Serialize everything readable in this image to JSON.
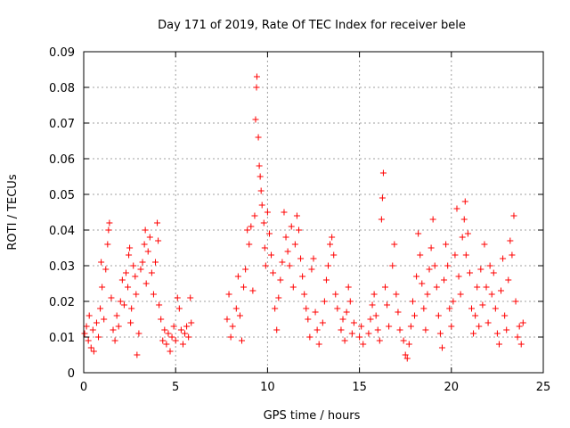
{
  "chart_data": {
    "type": "scatter",
    "title": "Day 171 of 2019, Rate Of TEC Index for receiver bele",
    "xlabel": "GPS time / hours",
    "ylabel": "ROTI / TECUs",
    "xlim": [
      0,
      25
    ],
    "ylim": [
      0,
      0.09
    ],
    "x_ticks": [
      0,
      5,
      10,
      15,
      20,
      25
    ],
    "y_ticks": [
      0,
      0.01,
      0.02,
      0.03,
      0.04,
      0.05,
      0.06,
      0.07,
      0.08,
      0.09
    ],
    "x_tick_labels": [
      "0",
      "5",
      "10",
      "15",
      "20",
      "25"
    ],
    "y_tick_labels": [
      "0",
      "0.01",
      "0.02",
      "0.03",
      "0.04",
      "0.05",
      "0.06",
      "0.07",
      "0.08",
      "0.09"
    ],
    "grid": true,
    "marker": "+",
    "marker_color": "#ff0000",
    "series": [
      {
        "points": [
          [
            0.05,
            0.011
          ],
          [
            0.15,
            0.013
          ],
          [
            0.25,
            0.009
          ],
          [
            0.3,
            0.016
          ],
          [
            0.4,
            0.007
          ],
          [
            0.5,
            0.012
          ],
          [
            0.55,
            0.006
          ],
          [
            0.7,
            0.014
          ],
          [
            0.8,
            0.01
          ],
          [
            0.9,
            0.018
          ],
          [
            0.95,
            0.031
          ],
          [
            1.0,
            0.024
          ],
          [
            1.1,
            0.015
          ],
          [
            1.2,
            0.029
          ],
          [
            1.3,
            0.036
          ],
          [
            1.35,
            0.04
          ],
          [
            1.4,
            0.042
          ],
          [
            1.5,
            0.021
          ],
          [
            1.6,
            0.012
          ],
          [
            1.7,
            0.009
          ],
          [
            1.8,
            0.016
          ],
          [
            1.9,
            0.013
          ],
          [
            2.0,
            0.02
          ],
          [
            2.1,
            0.026
          ],
          [
            2.2,
            0.019
          ],
          [
            2.3,
            0.028
          ],
          [
            2.4,
            0.024
          ],
          [
            2.45,
            0.033
          ],
          [
            2.5,
            0.035
          ],
          [
            2.55,
            0.014
          ],
          [
            2.6,
            0.018
          ],
          [
            2.7,
            0.03
          ],
          [
            2.8,
            0.027
          ],
          [
            2.85,
            0.022
          ],
          [
            2.9,
            0.005
          ],
          [
            3.0,
            0.011
          ],
          [
            3.1,
            0.029
          ],
          [
            3.2,
            0.031
          ],
          [
            3.3,
            0.036
          ],
          [
            3.35,
            0.04
          ],
          [
            3.4,
            0.025
          ],
          [
            3.5,
            0.034
          ],
          [
            3.6,
            0.038
          ],
          [
            3.7,
            0.028
          ],
          [
            3.8,
            0.022
          ],
          [
            3.9,
            0.031
          ],
          [
            4.0,
            0.042
          ],
          [
            4.05,
            0.037
          ],
          [
            4.1,
            0.019
          ],
          [
            4.2,
            0.015
          ],
          [
            4.3,
            0.009
          ],
          [
            4.4,
            0.012
          ],
          [
            4.5,
            0.008
          ],
          [
            4.6,
            0.011
          ],
          [
            4.7,
            0.006
          ],
          [
            4.8,
            0.01
          ],
          [
            4.9,
            0.013
          ],
          [
            5.0,
            0.009
          ],
          [
            5.1,
            0.021
          ],
          [
            5.2,
            0.018
          ],
          [
            5.3,
            0.012
          ],
          [
            5.4,
            0.008
          ],
          [
            5.5,
            0.011
          ],
          [
            5.6,
            0.013
          ],
          [
            5.7,
            0.01
          ],
          [
            5.8,
            0.021
          ],
          [
            5.85,
            0.014
          ],
          [
            7.8,
            0.015
          ],
          [
            7.9,
            0.022
          ],
          [
            8.0,
            0.01
          ],
          [
            8.1,
            0.013
          ],
          [
            8.3,
            0.018
          ],
          [
            8.4,
            0.027
          ],
          [
            8.5,
            0.016
          ],
          [
            8.6,
            0.009
          ],
          [
            8.7,
            0.024
          ],
          [
            8.8,
            0.029
          ],
          [
            8.9,
            0.04
          ],
          [
            9.0,
            0.036
          ],
          [
            9.1,
            0.041
          ],
          [
            9.2,
            0.023
          ],
          [
            9.3,
            0.044
          ],
          [
            9.35,
            0.071
          ],
          [
            9.4,
            0.08
          ],
          [
            9.42,
            0.083
          ],
          [
            9.5,
            0.066
          ],
          [
            9.55,
            0.058
          ],
          [
            9.6,
            0.055
          ],
          [
            9.65,
            0.051
          ],
          [
            9.7,
            0.047
          ],
          [
            9.8,
            0.042
          ],
          [
            9.85,
            0.035
          ],
          [
            9.9,
            0.03
          ],
          [
            10.0,
            0.045
          ],
          [
            10.1,
            0.039
          ],
          [
            10.2,
            0.033
          ],
          [
            10.3,
            0.028
          ],
          [
            10.4,
            0.018
          ],
          [
            10.5,
            0.012
          ],
          [
            10.6,
            0.021
          ],
          [
            10.7,
            0.026
          ],
          [
            10.8,
            0.031
          ],
          [
            10.9,
            0.045
          ],
          [
            11.0,
            0.038
          ],
          [
            11.1,
            0.034
          ],
          [
            11.2,
            0.03
          ],
          [
            11.3,
            0.041
          ],
          [
            11.4,
            0.024
          ],
          [
            11.5,
            0.036
          ],
          [
            11.6,
            0.044
          ],
          [
            11.7,
            0.04
          ],
          [
            11.8,
            0.032
          ],
          [
            11.9,
            0.027
          ],
          [
            12.0,
            0.022
          ],
          [
            12.1,
            0.018
          ],
          [
            12.2,
            0.015
          ],
          [
            12.3,
            0.01
          ],
          [
            12.4,
            0.029
          ],
          [
            12.5,
            0.032
          ],
          [
            12.6,
            0.017
          ],
          [
            12.7,
            0.012
          ],
          [
            12.8,
            0.008
          ],
          [
            13.0,
            0.014
          ],
          [
            13.1,
            0.02
          ],
          [
            13.2,
            0.026
          ],
          [
            13.3,
            0.03
          ],
          [
            13.4,
            0.036
          ],
          [
            13.5,
            0.038
          ],
          [
            13.6,
            0.033
          ],
          [
            13.7,
            0.022
          ],
          [
            13.8,
            0.018
          ],
          [
            14.0,
            0.012
          ],
          [
            14.1,
            0.015
          ],
          [
            14.2,
            0.009
          ],
          [
            14.3,
            0.017
          ],
          [
            14.4,
            0.024
          ],
          [
            14.5,
            0.02
          ],
          [
            14.6,
            0.011
          ],
          [
            14.7,
            0.014
          ],
          [
            15.0,
            0.01
          ],
          [
            15.1,
            0.013
          ],
          [
            15.2,
            0.008
          ],
          [
            15.5,
            0.011
          ],
          [
            15.6,
            0.015
          ],
          [
            15.7,
            0.019
          ],
          [
            15.8,
            0.022
          ],
          [
            15.9,
            0.016
          ],
          [
            16.0,
            0.012
          ],
          [
            16.1,
            0.009
          ],
          [
            16.2,
            0.043
          ],
          [
            16.25,
            0.049
          ],
          [
            16.3,
            0.056
          ],
          [
            16.4,
            0.024
          ],
          [
            16.5,
            0.019
          ],
          [
            16.6,
            0.013
          ],
          [
            16.8,
            0.03
          ],
          [
            16.9,
            0.036
          ],
          [
            17.0,
            0.022
          ],
          [
            17.1,
            0.017
          ],
          [
            17.2,
            0.012
          ],
          [
            17.4,
            0.009
          ],
          [
            17.5,
            0.005
          ],
          [
            17.6,
            0.004
          ],
          [
            17.7,
            0.008
          ],
          [
            17.8,
            0.013
          ],
          [
            17.9,
            0.02
          ],
          [
            18.0,
            0.016
          ],
          [
            18.1,
            0.027
          ],
          [
            18.2,
            0.039
          ],
          [
            18.3,
            0.033
          ],
          [
            18.4,
            0.025
          ],
          [
            18.5,
            0.018
          ],
          [
            18.6,
            0.012
          ],
          [
            18.7,
            0.022
          ],
          [
            18.8,
            0.029
          ],
          [
            18.9,
            0.035
          ],
          [
            19.0,
            0.043
          ],
          [
            19.1,
            0.03
          ],
          [
            19.2,
            0.024
          ],
          [
            19.3,
            0.016
          ],
          [
            19.4,
            0.011
          ],
          [
            19.5,
            0.007
          ],
          [
            19.6,
            0.026
          ],
          [
            19.7,
            0.036
          ],
          [
            19.8,
            0.03
          ],
          [
            19.9,
            0.018
          ],
          [
            20.0,
            0.013
          ],
          [
            20.1,
            0.02
          ],
          [
            20.2,
            0.033
          ],
          [
            20.3,
            0.046
          ],
          [
            20.4,
            0.027
          ],
          [
            20.5,
            0.022
          ],
          [
            20.6,
            0.038
          ],
          [
            20.7,
            0.043
          ],
          [
            20.75,
            0.048
          ],
          [
            20.8,
            0.033
          ],
          [
            20.9,
            0.039
          ],
          [
            21.0,
            0.028
          ],
          [
            21.1,
            0.018
          ],
          [
            21.2,
            0.011
          ],
          [
            21.3,
            0.016
          ],
          [
            21.4,
            0.024
          ],
          [
            21.5,
            0.013
          ],
          [
            21.6,
            0.029
          ],
          [
            21.7,
            0.019
          ],
          [
            21.8,
            0.036
          ],
          [
            21.9,
            0.024
          ],
          [
            22.0,
            0.014
          ],
          [
            22.1,
            0.03
          ],
          [
            22.2,
            0.022
          ],
          [
            22.3,
            0.028
          ],
          [
            22.4,
            0.018
          ],
          [
            22.5,
            0.011
          ],
          [
            22.6,
            0.008
          ],
          [
            22.7,
            0.023
          ],
          [
            22.8,
            0.032
          ],
          [
            22.9,
            0.016
          ],
          [
            23.0,
            0.012
          ],
          [
            23.1,
            0.026
          ],
          [
            23.2,
            0.037
          ],
          [
            23.3,
            0.033
          ],
          [
            23.4,
            0.044
          ],
          [
            23.5,
            0.02
          ],
          [
            23.6,
            0.01
          ],
          [
            23.7,
            0.013
          ],
          [
            23.8,
            0.008
          ],
          [
            23.9,
            0.014
          ]
        ]
      }
    ]
  }
}
